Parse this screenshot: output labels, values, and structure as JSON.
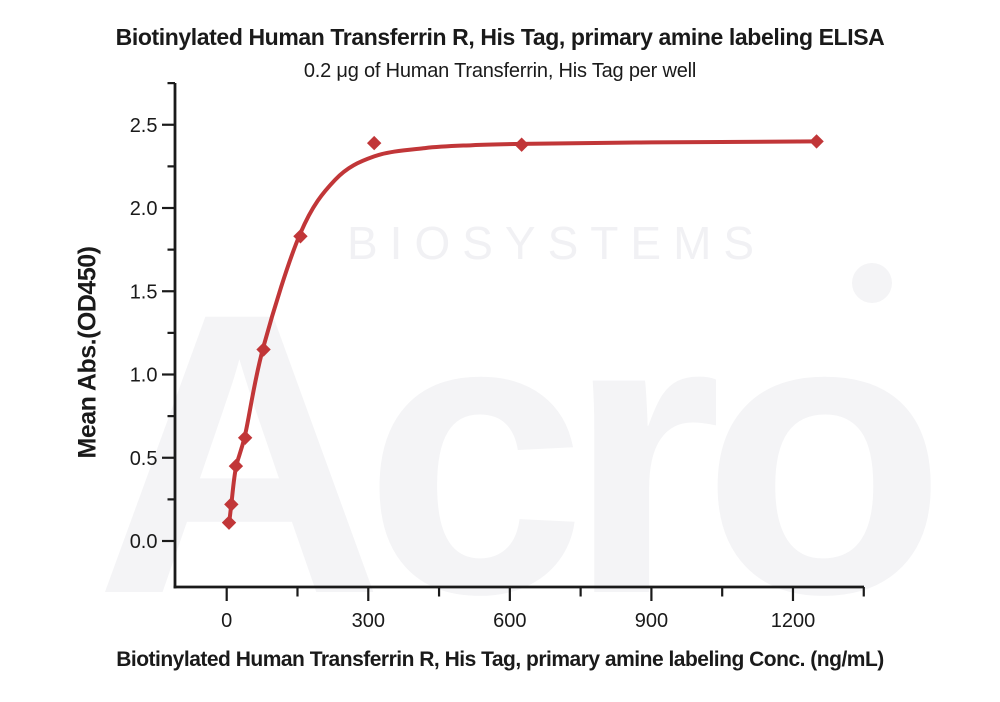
{
  "watermark": {
    "brand_word": "Acro",
    "brand_upper": "BIOSYSTEMS"
  },
  "colors": {
    "series_red": "#C13638",
    "axis_black": "#1a1a1a",
    "watermark_gray": "#f4f4f6",
    "watermark_gray_light": "#f1f1f4"
  },
  "chart_data": {
    "type": "scatter",
    "title": "Biotinylated Human Transferrin R, His Tag, primary amine labeling ELISA",
    "subtitle": "0.2 μg of Human Transferrin, His Tag per well",
    "xlabel": "Biotinylated Human Transferrin R, His Tag, primary amine labeling Conc. (ng/mL)",
    "ylabel": "Mean Abs.(OD450)",
    "legend": "none",
    "grid": false,
    "marker": "diamond",
    "color": "#C13638",
    "x": [
      4.9,
      9.8,
      19.5,
      39.1,
      78.1,
      156.3,
      312.5,
      625,
      1250
    ],
    "y": [
      0.11,
      0.22,
      0.45,
      0.62,
      1.15,
      1.83,
      2.39,
      2.38,
      2.4
    ],
    "fit_curve": {
      "color": "#C13638",
      "anchors": [
        [
          4.9,
          0.1
        ],
        [
          9.8,
          0.22
        ],
        [
          19.5,
          0.44
        ],
        [
          39.1,
          0.64
        ],
        [
          78.1,
          1.17
        ],
        [
          156.3,
          1.85
        ],
        [
          230,
          2.17
        ],
        [
          312.5,
          2.31
        ],
        [
          420,
          2.36
        ],
        [
          520,
          2.377
        ],
        [
          625,
          2.385
        ],
        [
          900,
          2.394
        ],
        [
          1250,
          2.4
        ]
      ]
    },
    "x_axis": {
      "lim": [
        -113,
        1350
      ],
      "tick_values": [
        0,
        300,
        600,
        900,
        1200
      ],
      "tick_labels": [
        "0",
        "300",
        "600",
        "900",
        "1200"
      ],
      "minor_tick_values": [
        150,
        450,
        750,
        1050,
        1350
      ]
    },
    "y_axis": {
      "lim": [
        -0.27,
        2.75
      ],
      "tick_values": [
        0.0,
        0.5,
        1.0,
        1.5,
        2.0,
        2.5
      ],
      "tick_labels": [
        "0.0",
        "0.5",
        "1.0",
        "1.5",
        "2.0",
        "2.5"
      ],
      "minor_tick_values": [
        0.25,
        0.75,
        1.25,
        1.75,
        2.25,
        2.75
      ]
    }
  }
}
